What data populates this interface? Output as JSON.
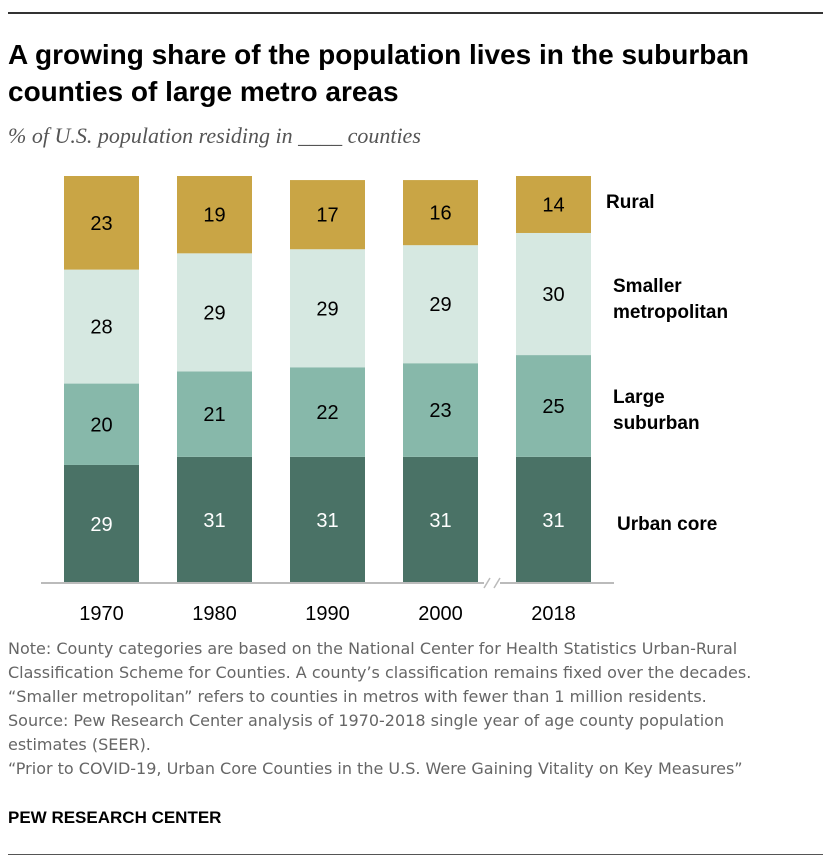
{
  "title": "A growing share of the population lives in the suburban counties of large metro areas",
  "subtitle": "% of U.S. population residing in ____ counties",
  "chart_data": {
    "type": "bar",
    "stacked": true,
    "categories": [
      "1970",
      "1980",
      "1990",
      "2000",
      "2018"
    ],
    "series": [
      {
        "name": "Urban core",
        "color": "#4a7266",
        "label_color": "#ffffff",
        "values": [
          29,
          31,
          31,
          31,
          31
        ]
      },
      {
        "name": "Large suburban",
        "color": "#87b8aa",
        "label_color": "#000000",
        "values": [
          20,
          21,
          22,
          23,
          25
        ]
      },
      {
        "name": "Smaller metropolitan",
        "color": "#d6e8e1",
        "label_color": "#000000",
        "values": [
          28,
          29,
          29,
          29,
          30
        ]
      },
      {
        "name": "Rural",
        "color": "#c9a545",
        "label_color": "#000000",
        "values": [
          23,
          19,
          17,
          16,
          14
        ]
      }
    ],
    "legend_placement": "right",
    "axis_break_between": [
      "2000",
      "2018"
    ],
    "ylim": [
      0,
      100
    ],
    "grid": false
  },
  "legend": {
    "rural": [
      "Rural"
    ],
    "smaller_metro": [
      "Smaller",
      "metropolitan"
    ],
    "large_suburban": [
      "Large",
      "suburban"
    ],
    "urban_core": [
      "Urban core"
    ]
  },
  "notes": [
    "Note: County categories are based on the National Center for Health Statistics Urban-Rural",
    "Classification Scheme for Counties. A county’s classification remains fixed over the decades.",
    "“Smaller metropolitan” refers to counties in metros with fewer than 1 million residents.",
    "Source: Pew Research Center analysis of 1970-2018 single year of age county population",
    "estimates (SEER).",
    "“Prior to COVID-19, Urban Core Counties in the U.S. Were Gaining Vitality on Key Measures”"
  ],
  "brand": "PEW RESEARCH CENTER"
}
